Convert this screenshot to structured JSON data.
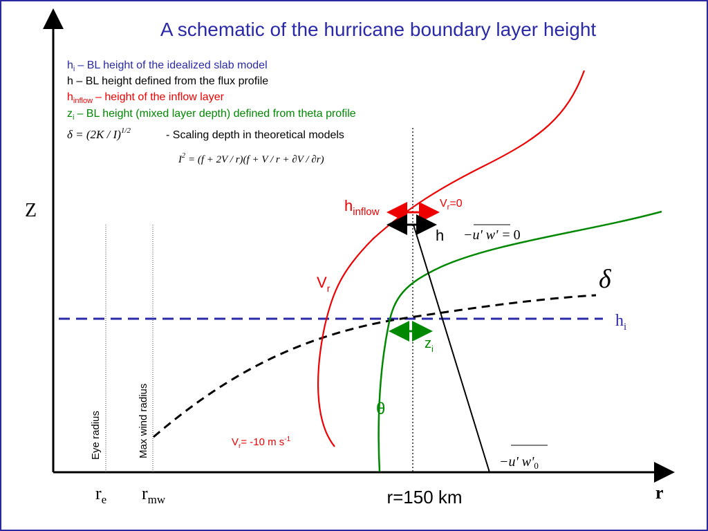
{
  "title": "A schematic of the hurricane boundary layer height",
  "legend": [
    {
      "symbol": "h",
      "sub": "i",
      "text": "– BL height of the idealized slab model"
    },
    {
      "text": "h – BL height defined from the flux profile"
    },
    {
      "symbol": "h",
      "sub": "inflow",
      "text": "– height of the inflow layer"
    },
    {
      "symbol": "z",
      "sub": "i",
      "text": "– BL height (mixed layer depth) defined from theta profile"
    }
  ],
  "formulas": {
    "delta": {
      "lhs": "δ = (2K / I)",
      "sup": "1/2"
    },
    "delta_note": "- Scaling depth in theoretical models",
    "inertial": {
      "lhs": "I",
      "sup": "2",
      "rhs": "= (f + 2V / r)(f + V / r + ∂V / ∂r)"
    }
  },
  "labels": {
    "h_inflow": {
      "symbol": "h",
      "sub": "inflow"
    },
    "vr_zero": {
      "symbol": "V",
      "sub": "r",
      "text": "=0"
    },
    "h": "h",
    "flux_zero": {
      "minus": "−",
      "term": "u' w'",
      "text": "= 0"
    },
    "vr": {
      "symbol": "V",
      "sub": "r"
    },
    "delta": "δ",
    "h_i": {
      "symbol": "h",
      "sub": "i"
    },
    "z_i": {
      "symbol": "z",
      "sub": "i"
    },
    "theta": "θ",
    "vr_minus10": {
      "symbol": "V",
      "sub": "r",
      "text": "= -10 m s",
      "sup": "-1"
    },
    "flux_surface": {
      "minus": "−",
      "term": "u' w'",
      "sub": "0"
    },
    "eye_radius": "Eye radius",
    "max_wind_radius": "Max wind radius",
    "z_axis": "Z",
    "r_e": {
      "symbol": "r",
      "sub": "e"
    },
    "r_mw": {
      "symbol": "r",
      "sub": "mw"
    },
    "r150": "r=150 km",
    "r_axis": "r"
  }
}
